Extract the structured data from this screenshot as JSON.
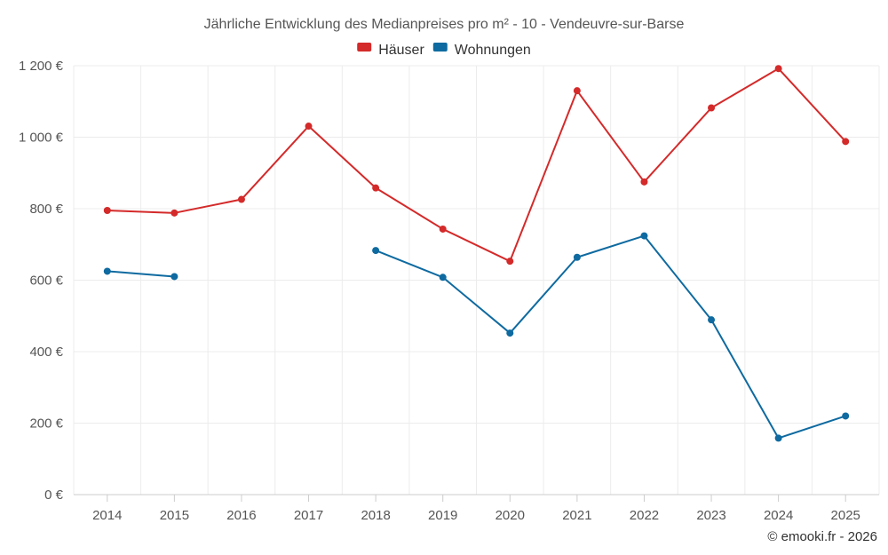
{
  "chart_data": {
    "type": "line",
    "title": "Jährliche Entwicklung des Medianpreises pro m² - 10 - Vendeuvre-sur-Barse",
    "categories": [
      "2014",
      "2015",
      "2016",
      "2017",
      "2018",
      "2019",
      "2020",
      "2021",
      "2022",
      "2023",
      "2024",
      "2025"
    ],
    "series": [
      {
        "name": "Häuser",
        "color": "#d42a2a",
        "values": [
          795,
          788,
          826,
          1031,
          858,
          743,
          653,
          1130,
          875,
          1082,
          1192,
          988
        ]
      },
      {
        "name": "Wohnungen",
        "color": "#0e6aa0",
        "values": [
          625,
          610,
          null,
          null,
          683,
          608,
          452,
          664,
          724,
          489,
          158,
          220
        ]
      }
    ],
    "ylim": [
      0,
      1200
    ],
    "yticks": [
      0,
      200,
      400,
      600,
      800,
      1000,
      1200
    ],
    "ytick_labels": [
      "0 €",
      "200 €",
      "400 €",
      "600 €",
      "800 €",
      "1 000 €",
      "1 200 €"
    ],
    "xlabel": "",
    "ylabel": "",
    "grid": true,
    "legend_position": "top-center"
  },
  "credit": "© emooki.fr - 2026"
}
